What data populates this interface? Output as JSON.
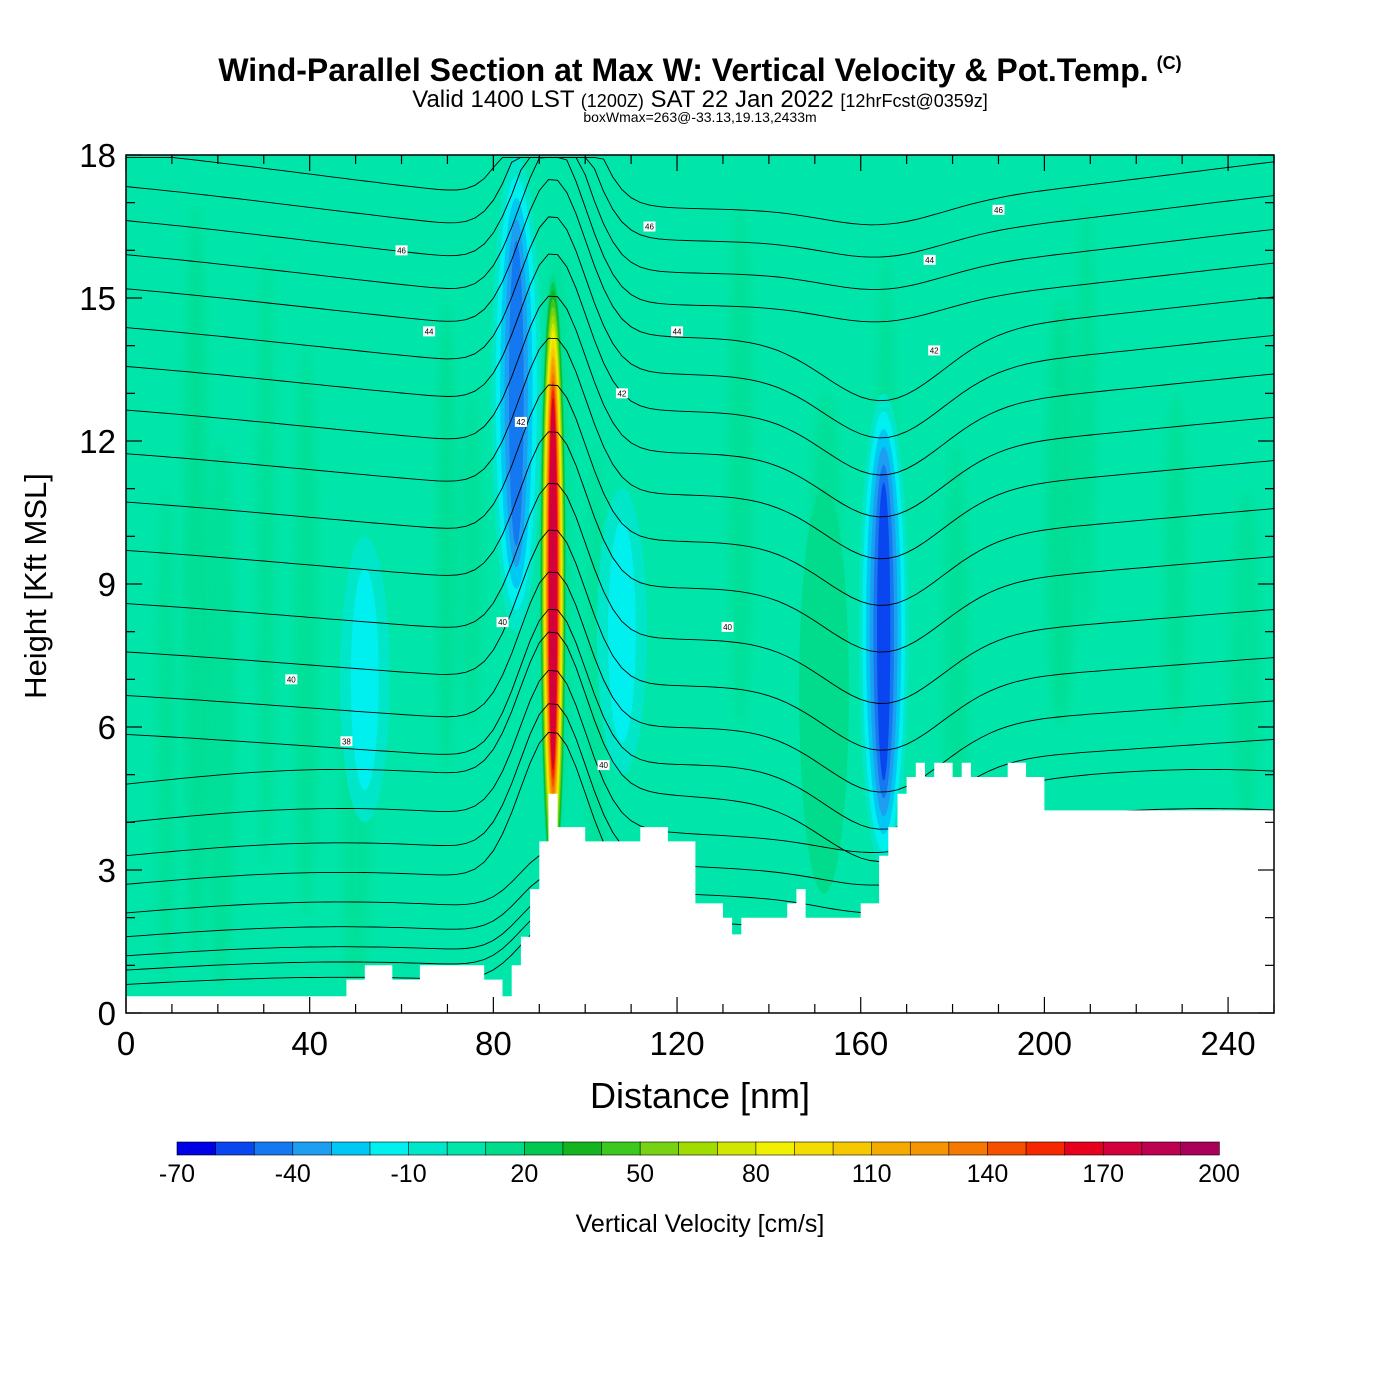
{
  "header": {
    "title": "Wind-Parallel Section at Max W: Vertical Velocity & Pot.Temp.",
    "copyright": "(C)",
    "valid_prefix": "Valid 1400 LST",
    "valid_zulu": "(1200Z)",
    "valid_date": "SAT 22 Jan 2022",
    "forecast": "[12hrFcst@0359z]",
    "boxwmax": "boxWmax=263@-33.13,19.13,2433m"
  },
  "chart_data": {
    "type": "heatmap",
    "xlabel": "Distance [nm]",
    "ylabel": "Height [Kft MSL]",
    "xlim": [
      0,
      250
    ],
    "ylim": [
      0,
      18
    ],
    "x_ticks": [
      0,
      40,
      80,
      120,
      160,
      200,
      240
    ],
    "y_ticks": [
      0,
      3,
      6,
      9,
      12,
      15,
      18
    ],
    "colorbar": {
      "label": "Vertical Velocity [cm/s]",
      "tick_values": [
        -70,
        -40,
        -10,
        20,
        50,
        80,
        110,
        140,
        170,
        200
      ],
      "levels": [
        -70,
        -60,
        -50,
        -40,
        -30,
        -20,
        -10,
        0,
        10,
        20,
        30,
        40,
        50,
        60,
        70,
        80,
        90,
        100,
        110,
        120,
        130,
        140,
        150,
        160,
        170,
        180,
        190,
        200
      ],
      "colors": [
        "#0000e6",
        "#0a46f0",
        "#1478f0",
        "#1e9ef0",
        "#00c8f5",
        "#00f0f0",
        "#00e6c8",
        "#00e6aa",
        "#00dc8c",
        "#00c850",
        "#14b41e",
        "#3cc81e",
        "#78d214",
        "#a0dc00",
        "#d2e600",
        "#f0f000",
        "#f5dc00",
        "#f5c800",
        "#f5aa00",
        "#f59600",
        "#f57800",
        "#f55000",
        "#f52800",
        "#e6001e",
        "#d2003c",
        "#be0050",
        "#aa005a"
      ]
    },
    "background_value": 2,
    "field_features": [
      {
        "kind": "updraft",
        "x": 93,
        "y_range": [
          2.5,
          15.5
        ],
        "peak": 180
      },
      {
        "kind": "downdraft",
        "x": 85,
        "y_range": [
          8,
          18
        ],
        "peak": -50
      },
      {
        "kind": "downdraft",
        "x": 165,
        "y_range": [
          3,
          13
        ],
        "peak": -60
      },
      {
        "kind": "downdraft",
        "x": 108,
        "y_range": [
          5,
          11
        ],
        "peak": -20
      },
      {
        "kind": "downdraft",
        "x": 52,
        "y_range": [
          4,
          10
        ],
        "peak": -20
      },
      {
        "kind": "updraft",
        "x": 152,
        "y_range": [
          2.5,
          11
        ],
        "peak": 25
      }
    ],
    "terrain": {
      "x": [
        0,
        48,
        48,
        52,
        52,
        58,
        58,
        64,
        64,
        70,
        70,
        78,
        78,
        82,
        82,
        84,
        84,
        86,
        86,
        88,
        88,
        90,
        90,
        92,
        92,
        94,
        94,
        96,
        96,
        100,
        100,
        112,
        112,
        118,
        118,
        124,
        124,
        130,
        130,
        132,
        132,
        134,
        134,
        144,
        144,
        146,
        146,
        148,
        148,
        160,
        160,
        164,
        164,
        166,
        166,
        168,
        168,
        170,
        170,
        172,
        172,
        174,
        174,
        176,
        176,
        180,
        180,
        182,
        182,
        184,
        184,
        192,
        192,
        196,
        196,
        200,
        200,
        204,
        204,
        250
      ],
      "y": [
        0.35,
        0.35,
        0.7,
        0.7,
        1.0,
        1.0,
        0.7,
        0.7,
        1.0,
        1.0,
        1.0,
        1.0,
        0.7,
        0.7,
        0.35,
        0.35,
        1.0,
        1.0,
        1.6,
        1.6,
        2.6,
        2.6,
        3.6,
        3.6,
        4.6,
        4.6,
        3.9,
        3.9,
        3.9,
        3.9,
        3.6,
        3.6,
        3.9,
        3.9,
        3.6,
        3.6,
        2.3,
        2.3,
        2.0,
        2.0,
        1.65,
        1.65,
        2.0,
        2.0,
        2.3,
        2.3,
        2.6,
        2.6,
        2.0,
        2.0,
        2.3,
        2.3,
        3.3,
        3.3,
        3.9,
        3.9,
        4.6,
        4.6,
        4.95,
        4.95,
        5.25,
        5.25,
        4.95,
        4.95,
        5.25,
        5.25,
        4.95,
        4.95,
        5.25,
        5.25,
        4.95,
        4.95,
        5.25,
        5.25,
        4.95,
        4.95,
        4.25,
        4.25,
        4.25,
        4.25
      ]
    },
    "contour_labels": [
      {
        "text": "46",
        "x": 60,
        "y": 16.0
      },
      {
        "text": "46",
        "x": 114,
        "y": 16.5
      },
      {
        "text": "46",
        "x": 190,
        "y": 16.85
      },
      {
        "text": "44",
        "x": 66,
        "y": 14.3
      },
      {
        "text": "44",
        "x": 120,
        "y": 14.3
      },
      {
        "text": "44",
        "x": 175,
        "y": 15.8
      },
      {
        "text": "42",
        "x": 108,
        "y": 13.0
      },
      {
        "text": "42",
        "x": 176,
        "y": 13.9
      },
      {
        "text": "42",
        "x": 86,
        "y": 12.4
      },
      {
        "text": "40",
        "x": 82,
        "y": 8.2
      },
      {
        "text": "40",
        "x": 36,
        "y": 7.0
      },
      {
        "text": "40",
        "x": 131,
        "y": 8.1
      },
      {
        "text": "40",
        "x": 104,
        "y": 5.2
      },
      {
        "text": "38",
        "x": 48,
        "y": 5.7
      }
    ]
  }
}
